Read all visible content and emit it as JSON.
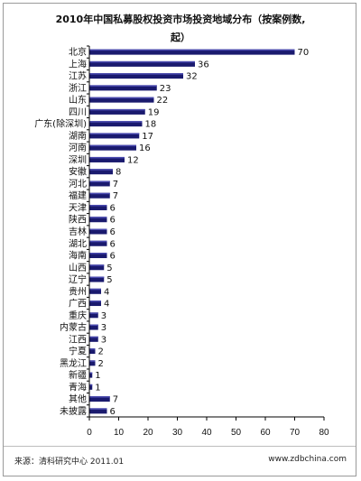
{
  "title_line1": "2010年中国私募股权投资市场投资地域分布（按案例数,",
  "title_line2": "起）",
  "source": "来源：清科研究中心 2011.01",
  "website": "www.zdbchina.com",
  "colors": {
    "bar": "#1a1a6e",
    "bar_highlight": "#4a4ab0",
    "axis": "#000000"
  },
  "chart_data": {
    "type": "bar",
    "orientation": "horizontal",
    "categories": [
      "北京",
      "上海",
      "江苏",
      "浙江",
      "山东",
      "四川",
      "广东(除深圳)",
      "湖南",
      "河南",
      "深圳",
      "安徽",
      "河北",
      "福建",
      "天津",
      "陕西",
      "吉林",
      "湖北",
      "海南",
      "山西",
      "辽宁",
      "贵州",
      "广西",
      "重庆",
      "内蒙古",
      "江西",
      "宁夏",
      "黑龙江",
      "新疆",
      "青海",
      "其他",
      "未披露"
    ],
    "values": [
      70,
      36,
      32,
      23,
      22,
      19,
      18,
      17,
      16,
      12,
      8,
      7,
      7,
      6,
      6,
      6,
      6,
      6,
      5,
      5,
      4,
      4,
      3,
      3,
      3,
      2,
      2,
      1,
      1,
      7,
      6
    ],
    "xlim": [
      0,
      80
    ],
    "xticks": [
      0,
      10,
      20,
      30,
      40,
      50,
      60,
      70,
      80
    ],
    "xlabel": "",
    "ylabel": "",
    "grid": false,
    "legend": "none"
  }
}
